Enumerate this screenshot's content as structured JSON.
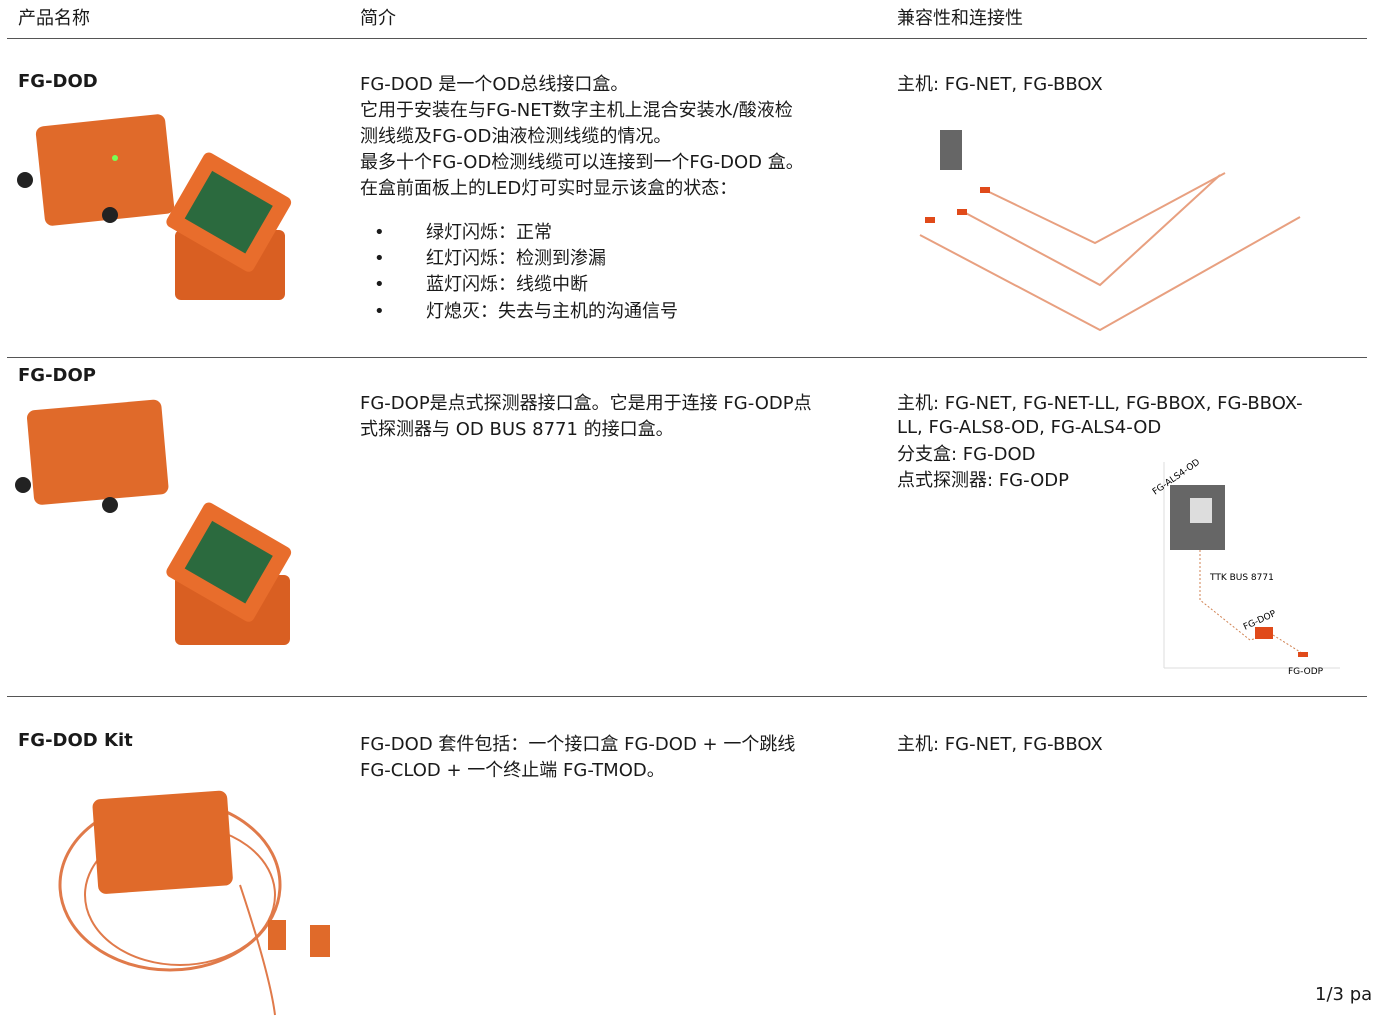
{
  "header": {
    "columns": [
      "产品名称",
      "简介",
      "兼容性和连接性"
    ]
  },
  "rows": [
    {
      "name": "FG-DOD",
      "description": [
        "FG-DOD 是一个OD总线接口盒。",
        "它用于安装在与FG-NET数字主机上混合安装水/酸液检",
        "测线缆及FG-OD油液检测线缆的情况。",
        "最多十个FG-OD检测线缆可以连接到一个FG-DOD 盒。",
        "在盒前面板上的LED灯可实时显示该盒的状态："
      ],
      "bullets": [
        "绿灯闪烁：正常",
        "红灯闪烁：检测到渗漏",
        "蓝灯闪烁：线缆中断",
        "灯熄灭：失去与主机的沟通信号"
      ],
      "compatibility": [
        "主机: FG-NET, FG-BBOX"
      ]
    },
    {
      "name": "FG-DOP",
      "description": [
        "FG-DOP是点式探测器接口盒。它是用于连接 FG-ODP点",
        "式探测器与 OD BUS 8771 的接口盒。"
      ],
      "compatibility": [
        "主机: FG-NET, FG-NET-LL, FG-BBOX, FG-BBOX-",
        "LL, FG-ALS8-OD, FG-ALS4-OD",
        "分支盒: FG-DOD",
        "点式探测器: FG-ODP"
      ],
      "diagram_labels": [
        "FG-ALS4-OD",
        "TTK BUS 8771",
        "FG-DOP",
        "FG-ODP"
      ]
    },
    {
      "name": "FG-DOD Kit",
      "description": [
        "FG-DOD 套件包括：一个接口盒 FG-DOD + 一个跳线",
        "FG-CLOD + 一个终止端 FG-TMOD。"
      ],
      "compatibility": [
        "主机: FG-NET, FG-BBOX"
      ]
    }
  ],
  "footer": "1/3 pa"
}
